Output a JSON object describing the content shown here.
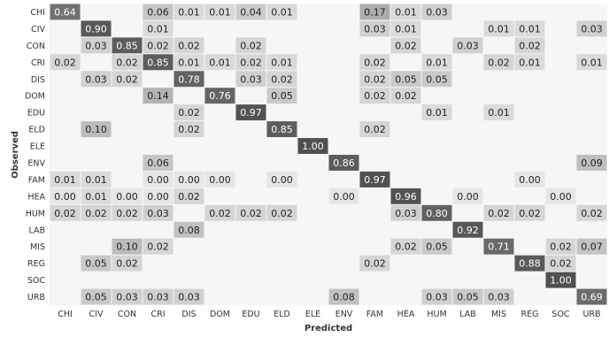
{
  "chart_data": {
    "type": "heatmap",
    "title": "",
    "xlabel": "Predicted",
    "ylabel": "Observed",
    "x_categories": [
      "CHI",
      "CIV",
      "CON",
      "CRI",
      "DIS",
      "DOM",
      "EDU",
      "ELD",
      "ELE",
      "ENV",
      "FAM",
      "HEA",
      "HUM",
      "LAB",
      "MIS",
      "REG",
      "SOC",
      "URB"
    ],
    "y_categories": [
      "CHI",
      "CIV",
      "CON",
      "CRI",
      "DIS",
      "DOM",
      "EDU",
      "ELD",
      "ELE",
      "ENV",
      "FAM",
      "HEA",
      "HUM",
      "LAB",
      "MIS",
      "REG",
      "SOC",
      "URB"
    ],
    "value_range": [
      0,
      1
    ],
    "colors": {
      "background": "#f6f6f6",
      "low": "#e6e6e6",
      "high": "#505050",
      "text_dark": "#222222",
      "text_light": "#ffffff",
      "grid": "#ffffff"
    },
    "values": [
      [
        0.64,
        null,
        null,
        0.06,
        0.01,
        0.01,
        0.04,
        0.01,
        null,
        null,
        0.17,
        0.01,
        0.03,
        null,
        null,
        null,
        null,
        null
      ],
      [
        null,
        0.9,
        null,
        0.01,
        null,
        null,
        null,
        null,
        null,
        null,
        0.03,
        0.01,
        null,
        null,
        0.01,
        0.01,
        null,
        0.03
      ],
      [
        null,
        0.03,
        0.85,
        0.02,
        0.02,
        null,
        0.02,
        null,
        null,
        null,
        null,
        0.02,
        null,
        0.03,
        null,
        0.02,
        null,
        null
      ],
      [
        0.02,
        null,
        0.02,
        0.85,
        0.01,
        0.01,
        0.02,
        0.01,
        null,
        null,
        0.02,
        null,
        0.01,
        null,
        0.02,
        0.01,
        null,
        0.01
      ],
      [
        null,
        0.03,
        0.02,
        null,
        0.78,
        null,
        0.03,
        0.02,
        null,
        null,
        0.02,
        0.05,
        0.05,
        null,
        null,
        null,
        null,
        null
      ],
      [
        null,
        null,
        null,
        0.14,
        null,
        0.76,
        null,
        0.05,
        null,
        null,
        0.02,
        0.02,
        null,
        null,
        null,
        null,
        null,
        null
      ],
      [
        null,
        null,
        null,
        null,
        0.02,
        null,
        0.97,
        null,
        null,
        null,
        null,
        null,
        0.01,
        null,
        0.01,
        null,
        null,
        null
      ],
      [
        null,
        0.1,
        null,
        null,
        0.02,
        null,
        null,
        0.85,
        null,
        null,
        0.02,
        null,
        null,
        null,
        null,
        null,
        null,
        null
      ],
      [
        null,
        null,
        null,
        null,
        null,
        null,
        null,
        null,
        1.0,
        null,
        null,
        null,
        null,
        null,
        null,
        null,
        null,
        null
      ],
      [
        null,
        null,
        null,
        0.06,
        null,
        null,
        null,
        null,
        null,
        0.86,
        null,
        null,
        null,
        null,
        null,
        null,
        null,
        0.09
      ],
      [
        0.01,
        0.01,
        null,
        0.0,
        0.0,
        0.0,
        null,
        0.0,
        null,
        null,
        0.97,
        null,
        null,
        null,
        null,
        0.0,
        null,
        null
      ],
      [
        0.0,
        0.01,
        0.0,
        0.0,
        0.02,
        null,
        null,
        null,
        null,
        0.0,
        null,
        0.96,
        null,
        0.0,
        null,
        null,
        0.0,
        null
      ],
      [
        0.02,
        0.02,
        0.02,
        0.03,
        null,
        0.02,
        0.02,
        0.02,
        null,
        null,
        null,
        0.03,
        0.8,
        null,
        0.02,
        0.02,
        null,
        0.02
      ],
      [
        null,
        null,
        null,
        null,
        0.08,
        null,
        null,
        null,
        null,
        null,
        null,
        null,
        null,
        0.92,
        null,
        null,
        null,
        null
      ],
      [
        null,
        null,
        0.1,
        0.02,
        null,
        null,
        null,
        null,
        null,
        null,
        null,
        0.02,
        0.05,
        null,
        0.71,
        null,
        0.02,
        0.07
      ],
      [
        null,
        0.05,
        0.02,
        null,
        null,
        null,
        null,
        null,
        null,
        null,
        0.02,
        null,
        null,
        null,
        null,
        0.88,
        0.02,
        null
      ],
      [
        null,
        null,
        null,
        null,
        null,
        null,
        null,
        null,
        null,
        null,
        null,
        null,
        null,
        null,
        null,
        null,
        1.0,
        null
      ],
      [
        null,
        0.05,
        0.03,
        0.03,
        0.03,
        null,
        null,
        null,
        null,
        0.08,
        null,
        null,
        0.03,
        0.05,
        0.03,
        null,
        null,
        0.69
      ]
    ]
  }
}
